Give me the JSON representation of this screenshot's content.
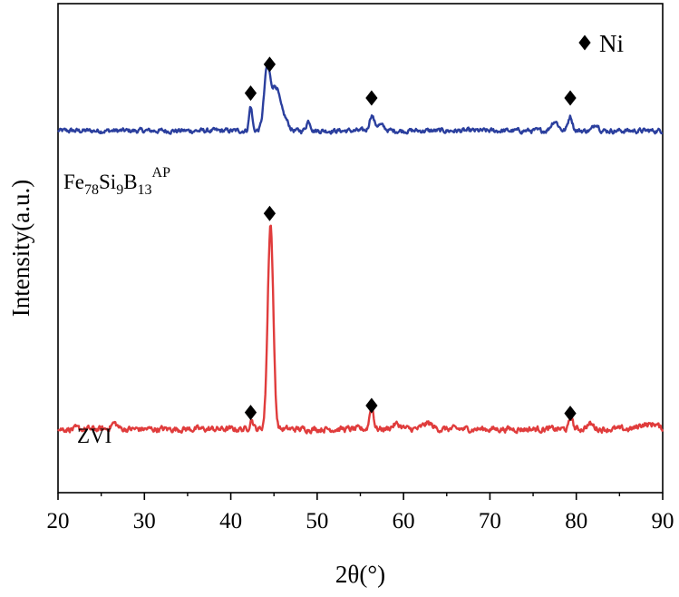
{
  "chart_data": {
    "type": "line",
    "title": "",
    "xlabel": "2θ(°)",
    "ylabel": "Intensity(a.u.)",
    "xlim": [
      20,
      90
    ],
    "xticks": [
      20,
      30,
      40,
      50,
      60,
      70,
      80,
      90
    ],
    "xtick_labels": [
      "20",
      "30",
      "40",
      "50",
      "60",
      "70",
      "80",
      "90"
    ],
    "yticks": [],
    "grid": false,
    "legend": {
      "position": "top-right",
      "marker": "diamond",
      "label": "Ni"
    },
    "peak_markers_2theta": [
      42.3,
      44.5,
      56.3,
      79.3
    ],
    "series": [
      {
        "name": "Fe78Si9B13AP",
        "label_parts": [
          {
            "text": "Fe",
            "style": "normal"
          },
          {
            "text": "78",
            "style": "sub"
          },
          {
            "text": "Si",
            "style": "normal"
          },
          {
            "text": "9",
            "style": "sub"
          },
          {
            "text": "B",
            "style": "normal"
          },
          {
            "text": "13",
            "style": "sub"
          },
          {
            "text": "AP",
            "style": "sup"
          }
        ],
        "color": "#2b3f9e",
        "baseline": 0.74,
        "noise": 0.004,
        "peaks": [
          {
            "x": 42.3,
            "height": 0.05,
            "width": 0.18
          },
          {
            "x": 44.2,
            "height": 0.12,
            "width": 0.35
          },
          {
            "x": 45.2,
            "height": 0.09,
            "width": 0.5
          },
          {
            "x": 46.3,
            "height": 0.02,
            "width": 0.4
          },
          {
            "x": 49.0,
            "height": 0.02,
            "width": 0.25
          },
          {
            "x": 56.3,
            "height": 0.03,
            "width": 0.25
          },
          {
            "x": 57.2,
            "height": 0.012,
            "width": 0.5
          },
          {
            "x": 77.5,
            "height": 0.02,
            "width": 0.4
          },
          {
            "x": 79.3,
            "height": 0.03,
            "width": 0.25
          },
          {
            "x": 82.3,
            "height": 0.015,
            "width": 0.3
          }
        ]
      },
      {
        "name": "ZVI",
        "label_parts": [
          {
            "text": "ZVI",
            "style": "normal"
          }
        ],
        "color": "#e03c3c",
        "baseline": 0.13,
        "noise": 0.005,
        "peaks": [
          {
            "x": 26.5,
            "height": 0.012,
            "width": 0.35
          },
          {
            "x": 42.4,
            "height": 0.02,
            "width": 0.2
          },
          {
            "x": 44.6,
            "height": 0.42,
            "width": 0.32
          },
          {
            "x": 56.3,
            "height": 0.05,
            "width": 0.22
          },
          {
            "x": 59.2,
            "height": 0.01,
            "width": 0.5
          },
          {
            "x": 62.8,
            "height": 0.012,
            "width": 0.5
          },
          {
            "x": 79.4,
            "height": 0.025,
            "width": 0.2
          },
          {
            "x": 81.6,
            "height": 0.01,
            "width": 0.4
          },
          {
            "x": 87.8,
            "height": 0.01,
            "width": 0.6
          },
          {
            "x": 89.1,
            "height": 0.01,
            "width": 0.4
          }
        ]
      }
    ],
    "series_markers": [
      {
        "series": "Fe78Si9B13AP",
        "x": [
          42.3,
          44.5,
          56.3,
          79.3
        ],
        "y": [
          0.817,
          0.876,
          0.807,
          0.807
        ]
      },
      {
        "series": "ZVI",
        "x": [
          42.3,
          44.5,
          56.3,
          79.3
        ],
        "y": [
          0.164,
          0.571,
          0.178,
          0.162
        ]
      }
    ]
  }
}
